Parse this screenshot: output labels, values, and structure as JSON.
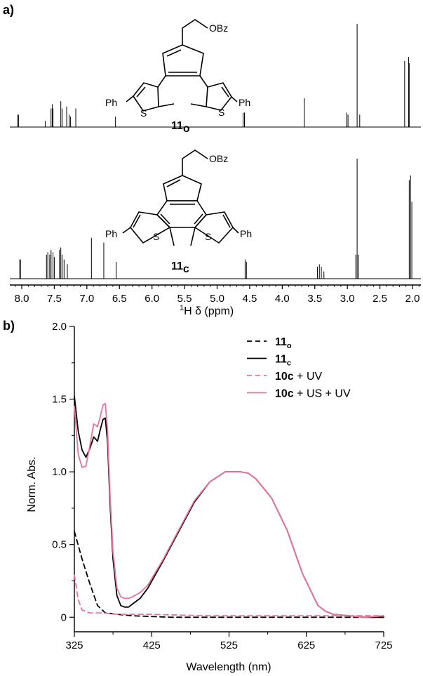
{
  "panel_a": {
    "label": "a)",
    "xlabel_sup": "1",
    "xlabel_rest": "H δ (ppm)",
    "structure_open": {
      "substituent": "OBz",
      "ph_left": "Ph",
      "ph_right": "Ph",
      "s_left": "S",
      "s_right": "S",
      "compound_num": "11",
      "compound_sub": "o"
    },
    "structure_closed": {
      "substituent": "OBz",
      "ph_left": "Ph",
      "ph_right": "Ph",
      "s_left": "S",
      "s_right": "S",
      "compound_num": "11",
      "compound_sub": "c"
    }
  },
  "panel_b": {
    "label": "b)",
    "legend": [
      {
        "bold": "11",
        "sub": "o",
        "rest": "",
        "color": "#000000",
        "dash": true
      },
      {
        "bold": "11",
        "sub": "c",
        "rest": "",
        "color": "#000000",
        "dash": false
      },
      {
        "bold": "10c",
        "sub": "",
        "rest": " + UV",
        "color": "#e8739f",
        "dash": true
      },
      {
        "bold": "10c",
        "sub": "",
        "rest": " + US + UV",
        "color": "#e8739f",
        "dash": false
      }
    ]
  },
  "chart_data": [
    {
      "type": "line",
      "title": "",
      "xlabel": "1H δ (ppm)",
      "ylabel": "",
      "x_reversed": true,
      "xlim": [
        8.2,
        1.9
      ],
      "xticks": [
        "8.0",
        "7.5",
        "7.0",
        "6.5",
        "6.0",
        "5.5",
        "5.0",
        "4.5",
        "4.0",
        "3.5",
        "3.0",
        "2.5",
        "2.0"
      ],
      "series": [
        {
          "name": "11o",
          "peaks_ppm": [
            8.06,
            8.05,
            7.64,
            7.55,
            7.53,
            7.52,
            7.4,
            7.38,
            7.31,
            7.27,
            7.25,
            7.17,
            6.56,
            4.6,
            4.58,
            3.66,
            3.01,
            2.99,
            2.85,
            2.81,
            2.12,
            2.06,
            2.05
          ],
          "heights_rel": [
            0.12,
            0.12,
            0.06,
            0.18,
            0.22,
            0.18,
            0.25,
            0.18,
            0.2,
            0.12,
            0.1,
            0.18,
            0.1,
            0.14,
            0.14,
            0.28,
            0.14,
            0.12,
            1.0,
            0.12,
            0.64,
            0.68,
            0.62
          ]
        },
        {
          "name": "11c",
          "peaks_ppm": [
            8.03,
            8.02,
            7.62,
            7.6,
            7.57,
            7.55,
            7.52,
            7.5,
            7.42,
            7.4,
            7.38,
            7.35,
            7.3,
            6.93,
            6.74,
            6.55,
            4.57,
            4.55,
            3.46,
            3.43,
            3.4,
            3.36,
            2.87,
            2.85,
            2.83,
            2.05,
            2.03,
            2.01
          ],
          "heights_rel": [
            0.16,
            0.16,
            0.2,
            0.22,
            0.2,
            0.24,
            0.22,
            0.18,
            0.24,
            0.26,
            0.2,
            0.16,
            0.12,
            0.34,
            0.3,
            0.14,
            0.16,
            0.14,
            0.1,
            0.12,
            0.1,
            0.06,
            0.2,
            1.0,
            0.2,
            0.82,
            0.86,
            0.64
          ]
        }
      ]
    },
    {
      "type": "line",
      "title": "",
      "xlabel": "Wavelength (nm)",
      "ylabel": "Norm. Abs.",
      "xlim": [
        325,
        725
      ],
      "ylim": [
        -0.1,
        2.0
      ],
      "xticks": [
        325,
        425,
        525,
        625,
        725
      ],
      "yticks": [
        0,
        0.5,
        1.0,
        1.5,
        2.0
      ],
      "ytick_labels": [
        "0",
        "0.5",
        "1.0",
        "1.5",
        "2.0"
      ],
      "grid": false,
      "legend_position": "top-right",
      "series": [
        {
          "name": "11o",
          "color": "#000000",
          "dash": true,
          "x": [
            325,
            335,
            345,
            355,
            365,
            380,
            400,
            450,
            500,
            600,
            725
          ],
          "y": [
            0.59,
            0.4,
            0.23,
            0.08,
            0.03,
            0.02,
            0.01,
            0.0,
            0.0,
            0.0,
            0.0
          ]
        },
        {
          "name": "11c",
          "color": "#000000",
          "dash": false,
          "x": [
            325,
            330,
            335,
            340,
            345,
            350,
            355,
            358,
            362,
            365,
            368,
            371,
            375,
            380,
            385,
            390,
            395,
            400,
            410,
            420,
            440,
            460,
            480,
            500,
            520,
            530,
            540,
            550,
            560,
            580,
            600,
            620,
            640,
            650,
            660,
            680,
            700,
            725
          ],
          "y": [
            1.52,
            1.28,
            1.15,
            1.1,
            1.16,
            1.24,
            1.21,
            1.28,
            1.36,
            1.37,
            1.2,
            0.8,
            0.4,
            0.15,
            0.08,
            0.07,
            0.07,
            0.09,
            0.13,
            0.2,
            0.39,
            0.59,
            0.79,
            0.93,
            1.0,
            1.0,
            1.0,
            0.99,
            0.95,
            0.82,
            0.6,
            0.3,
            0.08,
            0.04,
            0.02,
            0.01,
            0.0,
            0.0
          ]
        },
        {
          "name": "10c + UV",
          "color": "#e8739f",
          "dash": true,
          "x": [
            325,
            330,
            335,
            340,
            345,
            350,
            360,
            380,
            420,
            500,
            600,
            725
          ],
          "y": [
            0.29,
            0.12,
            0.05,
            0.04,
            0.03,
            0.03,
            0.03,
            0.02,
            0.02,
            0.01,
            0.01,
            0.01
          ]
        },
        {
          "name": "10c + US + UV",
          "color": "#e8739f",
          "dash": false,
          "x": [
            325,
            330,
            335,
            340,
            345,
            350,
            355,
            358,
            362,
            365,
            368,
            371,
            375,
            380,
            385,
            390,
            395,
            400,
            410,
            420,
            440,
            460,
            480,
            500,
            520,
            530,
            540,
            550,
            560,
            580,
            600,
            620,
            640,
            650,
            660,
            680,
            700,
            725
          ],
          "y": [
            1.45,
            1.12,
            1.03,
            1.04,
            1.18,
            1.33,
            1.31,
            1.37,
            1.46,
            1.47,
            1.28,
            0.86,
            0.45,
            0.2,
            0.14,
            0.13,
            0.13,
            0.14,
            0.17,
            0.22,
            0.4,
            0.6,
            0.8,
            0.93,
            1.0,
            1.0,
            1.0,
            0.99,
            0.95,
            0.82,
            0.6,
            0.3,
            0.08,
            0.04,
            0.02,
            0.01,
            0.0,
            0.01
          ]
        }
      ]
    }
  ]
}
